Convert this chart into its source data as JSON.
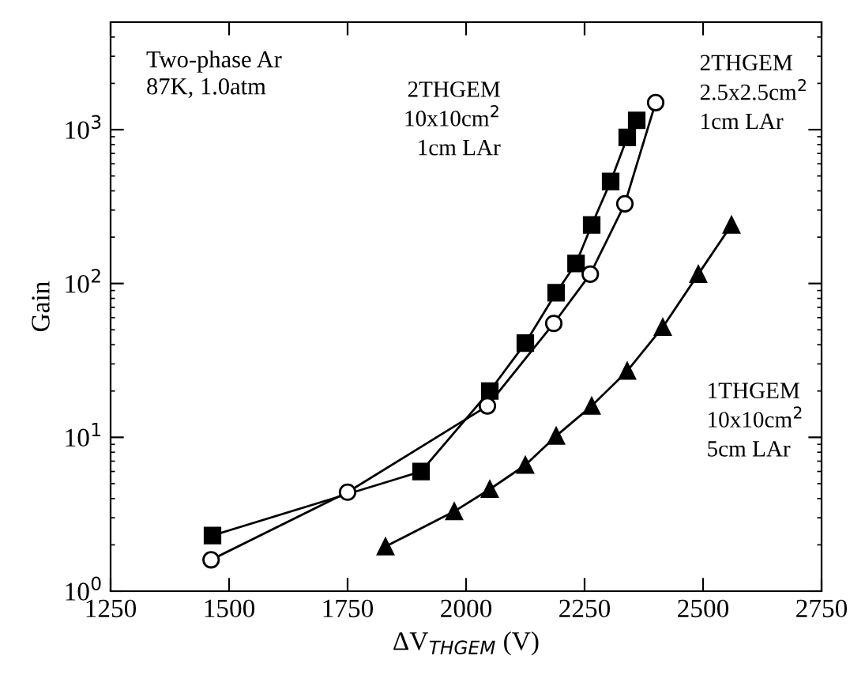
{
  "chart_data": {
    "type": "line",
    "xlabel": "ΔV$_{THGEM}$ (V)",
    "ylabel": "Gain",
    "log": "y",
    "xlim": [
      1250,
      2750
    ],
    "xticks": [
      1250,
      1500,
      1750,
      2000,
      2250,
      2500,
      2750
    ],
    "ylim": [
      1,
      5000
    ],
    "yticks": [
      {
        "value": 1,
        "label": "10$^{0}$"
      },
      {
        "value": 10,
        "label": "10$^{1}$"
      },
      {
        "value": 100,
        "label": "10$^{2}$"
      },
      {
        "value": 1000,
        "label": "10$^{3}$"
      }
    ],
    "grid": false,
    "legend": false,
    "line_style": "solid",
    "annotations": [
      "Two-phase Ar\n87K, 1.0atm"
    ],
    "series": [
      {
        "name": "2THGEM\n10x10cm$^{2}$\n1cm LAr",
        "color": "#000000",
        "marker": "square",
        "x": [
          1465,
          1905,
          2050,
          2125,
          2190,
          2232,
          2265,
          2305,
          2340,
          2360
        ],
        "values": [
          2.3,
          6,
          20,
          41,
          87,
          135,
          240,
          460,
          890,
          1150
        ]
      },
      {
        "name": "2THGEM\n2.5x2.5cm$^{2}$\n1cm LAr",
        "color": "#000000",
        "marker": "circle",
        "x": [
          1462,
          1750,
          2045,
          2185,
          2262,
          2335,
          2400
        ],
        "values": [
          1.6,
          4.4,
          16,
          55,
          115,
          330,
          1500
        ]
      },
      {
        "name": "1THGEM\n10x10cm$^{2}$\n5cm LAr",
        "color": "#000000",
        "marker": "triangle",
        "x": [
          1830,
          1975,
          2050,
          2125,
          2190,
          2265,
          2340,
          2415,
          2490,
          2560
        ],
        "values": [
          1.95,
          3.3,
          4.6,
          6.6,
          10.2,
          16,
          27,
          52,
          115,
          240
        ]
      }
    ]
  }
}
